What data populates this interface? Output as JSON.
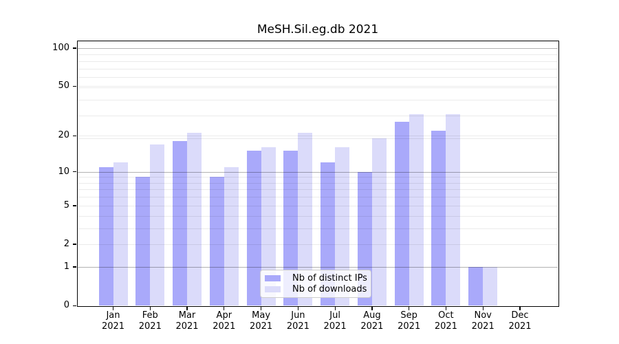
{
  "title": "MeSH.Sil.eg.db 2021",
  "chart_data": {
    "type": "bar",
    "title": "MeSH.Sil.eg.db 2021",
    "x_categories_month": [
      "Jan",
      "Feb",
      "Mar",
      "Apr",
      "May",
      "Jun",
      "Jul",
      "Aug",
      "Sep",
      "Oct",
      "Nov",
      "Dec"
    ],
    "x_categories_year": "2021",
    "series": [
      {
        "name": "Nb of distinct IPs",
        "color": "#a9a9fa",
        "values": [
          11,
          9,
          18,
          9,
          15,
          15,
          12,
          10,
          26,
          22,
          1,
          0
        ]
      },
      {
        "name": "Nb of downloads",
        "color": "#dbdbfa",
        "values": [
          12,
          17,
          21,
          11,
          16,
          21,
          16,
          19,
          30,
          30,
          1,
          0
        ]
      }
    ],
    "yscale": "log1p",
    "ylim": [
      0,
      113
    ],
    "yticks": {
      "values": [
        0,
        1,
        2,
        5,
        10,
        20,
        50,
        100
      ],
      "labels": [
        "0",
        "1",
        "2",
        "5",
        "10",
        "20",
        "50",
        "100"
      ]
    },
    "grid_major_values": [
      1,
      10,
      100
    ],
    "grid_minor_values": [
      2,
      3,
      4,
      5,
      6,
      7,
      8,
      9,
      19,
      20,
      29,
      39,
      49,
      50,
      59,
      69,
      79,
      89
    ],
    "grid": true,
    "legend_position": "lower center",
    "colors": {
      "grid_major": "rgba(0,0,0,0.30)",
      "grid_minor": "rgba(0,0,0,0.08)",
      "axis": "#000000"
    }
  }
}
